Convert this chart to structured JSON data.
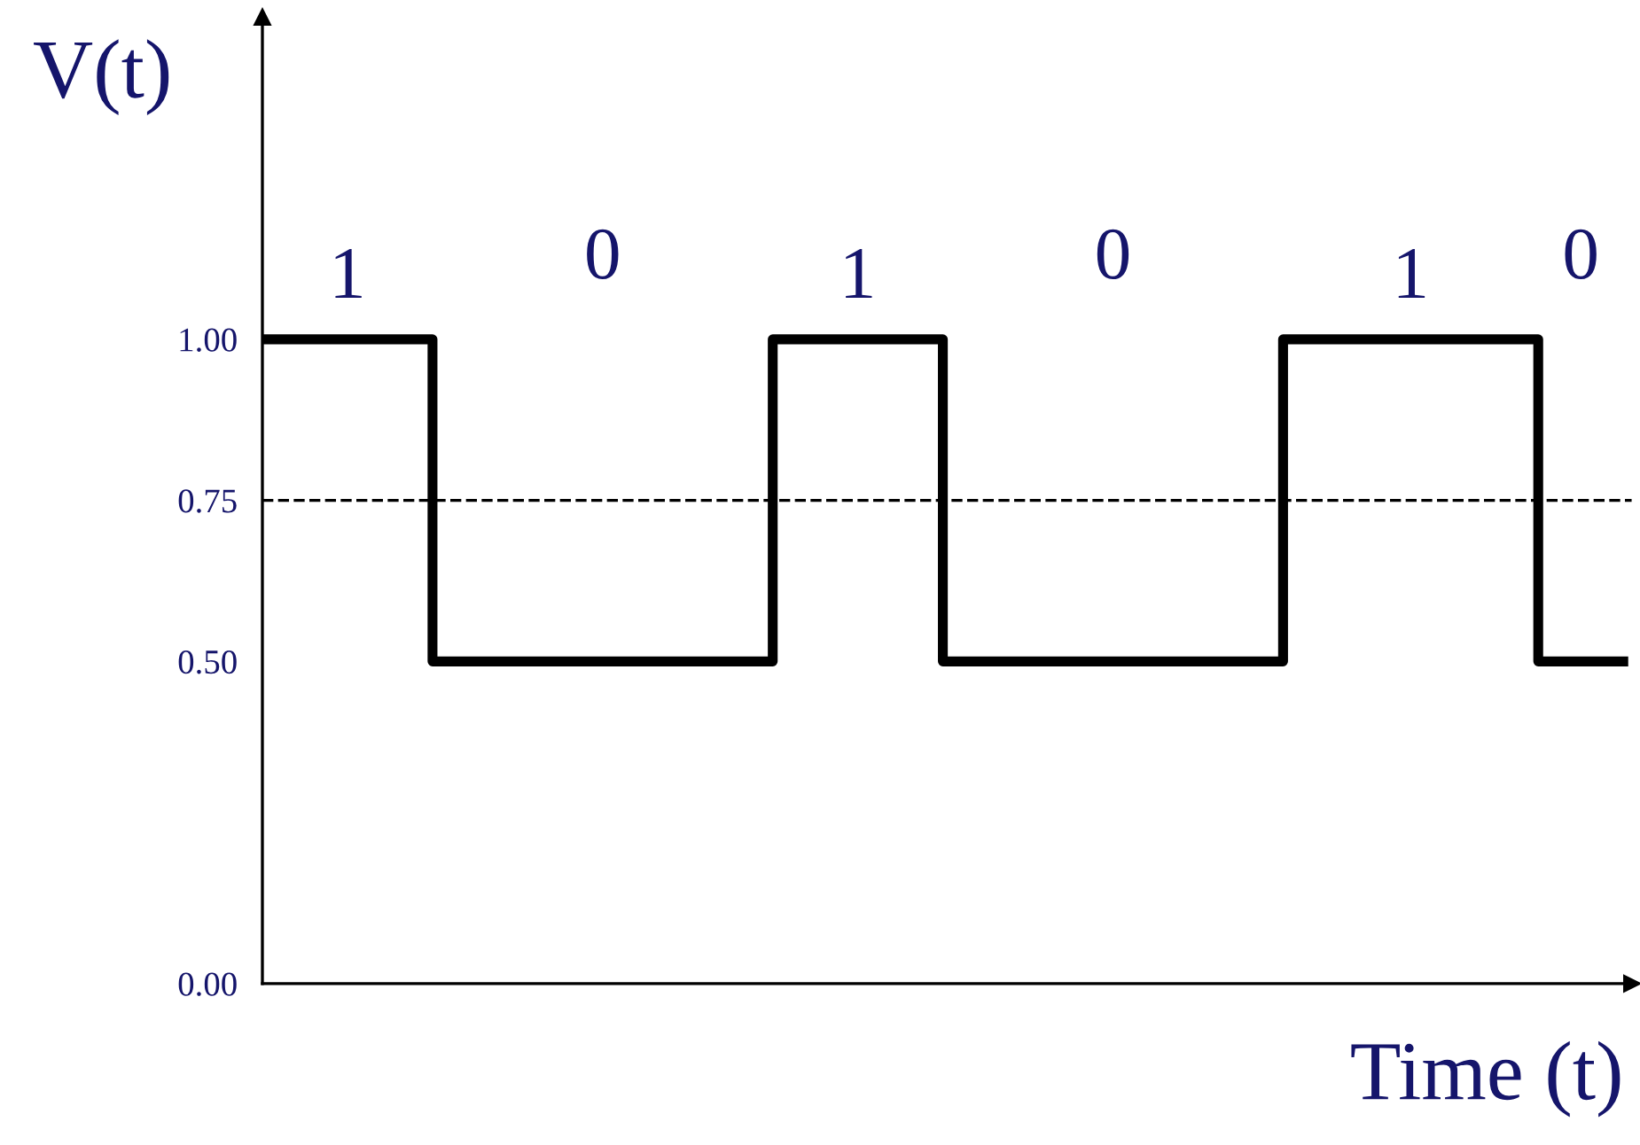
{
  "chart_data": {
    "type": "step",
    "ylabel": "V(t)",
    "xlabel": "Time (t)",
    "categories": [
      null,
      null,
      null,
      null,
      null,
      null,
      null,
      null,
      null,
      null,
      null,
      null,
      null,
      null,
      null,
      null,
      null
    ],
    "series": [
      {
        "color": "#000000",
        "values": [
          1.0,
          1.0,
          0.5,
          0.5,
          0.5,
          0.5,
          1.0,
          1.0,
          0.5,
          0.5,
          0.5,
          0.5,
          1.0,
          1.0,
          1.0,
          0.5,
          0.5
        ]
      }
    ],
    "ylim": [
      0,
      1.5
    ],
    "yticks": [
      {
        "value": 0,
        "label": "0.00"
      },
      {
        "value": 0.5,
        "label": "0.50"
      },
      {
        "value": 0.75,
        "label": "0.75"
      },
      {
        "value": 1.0,
        "label": "1.00"
      }
    ],
    "ref_lines": [
      {
        "axis": "y",
        "value": 0.75,
        "color": "#000000",
        "line_style": "dashed"
      }
    ],
    "annotations": [
      "1",
      "0",
      "1",
      "0",
      "1",
      "0"
    ],
    "grid": false,
    "line_style": "solid",
    "marker": "none"
  }
}
